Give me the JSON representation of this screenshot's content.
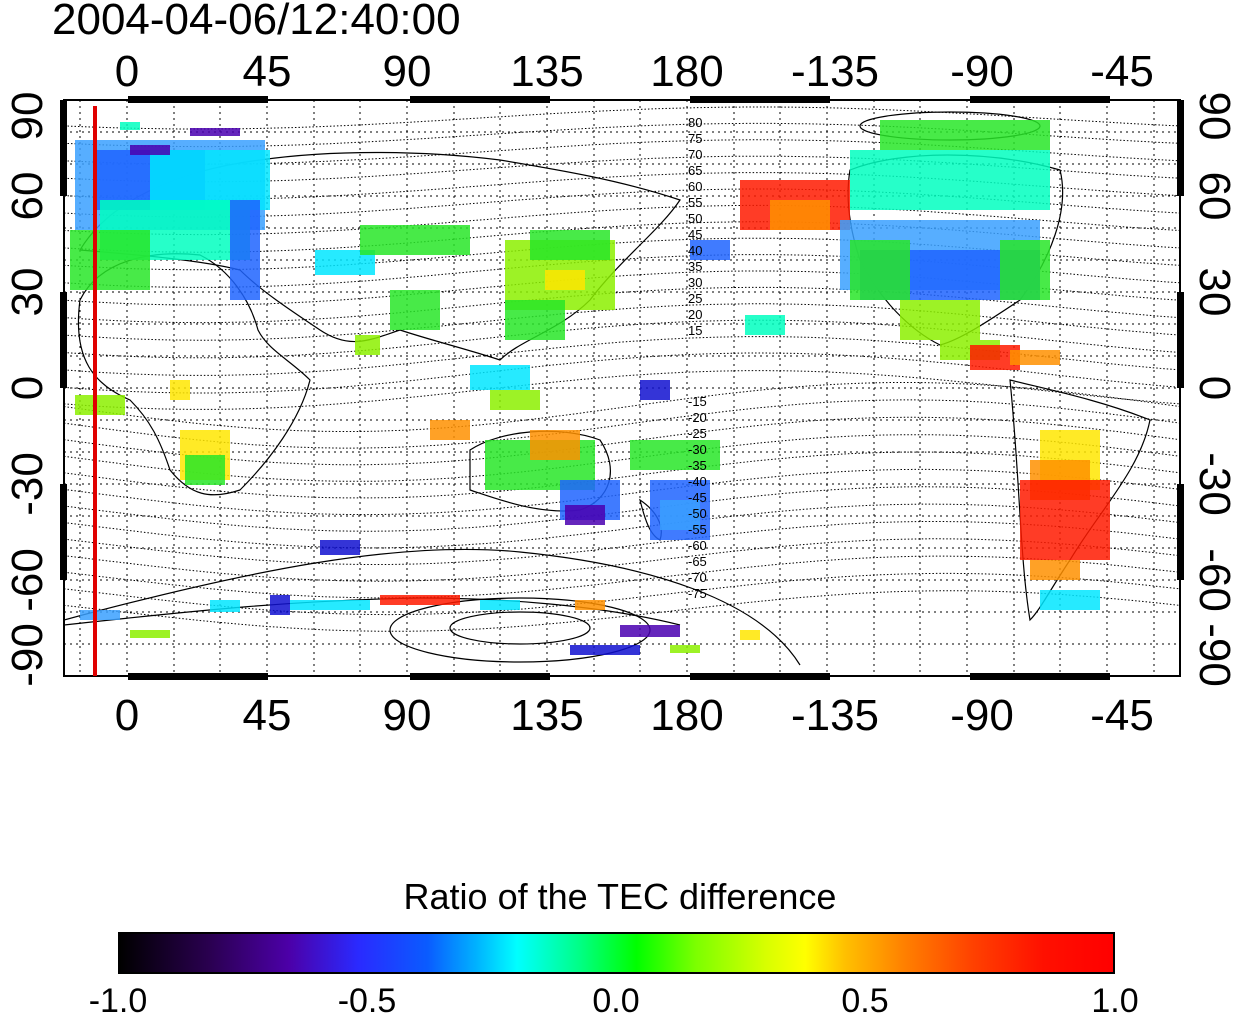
{
  "title": "2004-04-06/12:40:00",
  "map": {
    "top_longitude_labels": [
      "0",
      "45",
      "90",
      "135",
      "180",
      "-135",
      "-90",
      "-45"
    ],
    "bottom_longitude_labels": [
      "0",
      "45",
      "90",
      "135",
      "180",
      "-135",
      "-90",
      "-45"
    ],
    "left_latitude_labels": [
      "90",
      "60",
      "30",
      "0",
      "-30",
      "-60",
      "-90"
    ],
    "right_latitude_labels": [
      "90",
      "60",
      "30",
      "0",
      "-30",
      "-60",
      "-90"
    ],
    "magnetic_latitude_labels_north": [
      "80",
      "75",
      "70",
      "65",
      "60",
      "55",
      "50",
      "45",
      "40",
      "35",
      "30",
      "25",
      "20",
      "15"
    ],
    "magnetic_latitude_labels_south": [
      "-15",
      "-20",
      "-25",
      "-30",
      "-35",
      "-40",
      "-45",
      "-50",
      "-55",
      "-60",
      "-65",
      "-70",
      "-75"
    ],
    "terminator_line_color": "#e00000",
    "terminator_longitude": -20
  },
  "colorbar": {
    "title": "Ratio of the TEC difference",
    "tick_labels": [
      "-1.0",
      "-0.5",
      "0.0",
      "0.5",
      "1.0"
    ],
    "range": [
      -1.0,
      1.0
    ]
  }
}
